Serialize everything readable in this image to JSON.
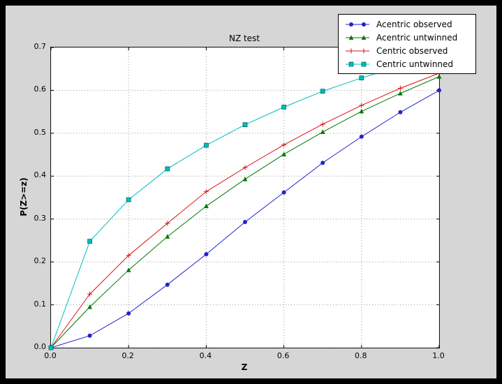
{
  "window": {
    "background": "#000000"
  },
  "figure": {
    "background": "#d6d6d6"
  },
  "axes": {
    "background": "#ffffff",
    "border_color": "#000000",
    "grid_color": "#9a9a9a",
    "tick_color": "#000000"
  },
  "chart_data": {
    "type": "line",
    "title": "NZ test",
    "xlabel": "Z",
    "ylabel": "P(Z>=z)",
    "xlim": [
      0.0,
      1.0
    ],
    "ylim": [
      0.0,
      0.7
    ],
    "grid": true,
    "legend_position": "upper right",
    "xticks": [
      0.0,
      0.2,
      0.4,
      0.6,
      0.8,
      1.0
    ],
    "xtick_labels": [
      "0.0",
      "0.2",
      "0.4",
      "0.6",
      "0.8",
      "1.0"
    ],
    "yticks": [
      0.0,
      0.1,
      0.2,
      0.3,
      0.4,
      0.5,
      0.6,
      0.7
    ],
    "ytick_labels": [
      "0.0",
      "0.1",
      "0.2",
      "0.3",
      "0.4",
      "0.5",
      "0.6",
      "0.7"
    ],
    "x": [
      0.0,
      0.1,
      0.2,
      0.3,
      0.4,
      0.5,
      0.6,
      0.7,
      0.8,
      0.9,
      1.0
    ],
    "series": [
      {
        "name": "Acentric observed",
        "color": "#2222cc",
        "marker": "circle",
        "values": [
          0.0,
          0.028,
          0.08,
          0.147,
          0.218,
          0.293,
          0.362,
          0.431,
          0.492,
          0.549,
          0.6
        ]
      },
      {
        "name": "Acentric untwinned",
        "color": "#007700",
        "marker": "triangle",
        "values": [
          0.0,
          0.095,
          0.181,
          0.259,
          0.33,
          0.393,
          0.451,
          0.503,
          0.551,
          0.593,
          0.632
        ]
      },
      {
        "name": "Centric observed",
        "color": "#dd1111",
        "marker": "plus",
        "values": [
          0.0,
          0.125,
          0.215,
          0.29,
          0.364,
          0.42,
          0.473,
          0.521,
          0.565,
          0.605,
          0.64
        ]
      },
      {
        "name": "Centric untwinned",
        "color": "#00bcbc",
        "marker": "square",
        "values": [
          0.0,
          0.248,
          0.345,
          0.417,
          0.472,
          0.52,
          0.561,
          0.598,
          0.629,
          0.657,
          0.683
        ]
      }
    ]
  }
}
